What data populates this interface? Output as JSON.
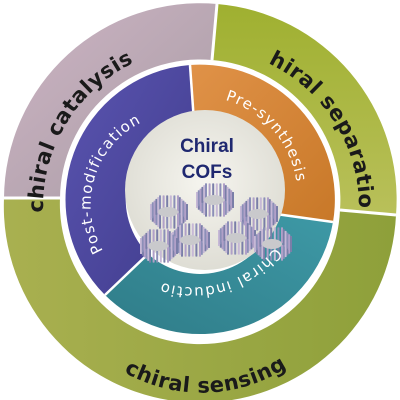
{
  "outer_ring": {
    "catalysis": "chiral catalysis",
    "separation": "chiral separation",
    "sensing": "chiral sensing"
  },
  "inner_ring": {
    "post_modification": "Post-modification",
    "pre_synthesis": "Pre-synthesis",
    "induction": "Chiral inductio"
  },
  "center": {
    "line1": "Chiral",
    "line2": "COFs"
  },
  "colors": {
    "outer_catalysis": "#bfa8b8",
    "outer_separation": "#a8b63a",
    "outer_sensing": "#98a540",
    "post_modification": "#4f4aa2",
    "pre_synthesis": "#d8883a",
    "induction": "#3d8f9c",
    "center_bg": "#ecebe4",
    "center_text": "#1f2870"
  }
}
